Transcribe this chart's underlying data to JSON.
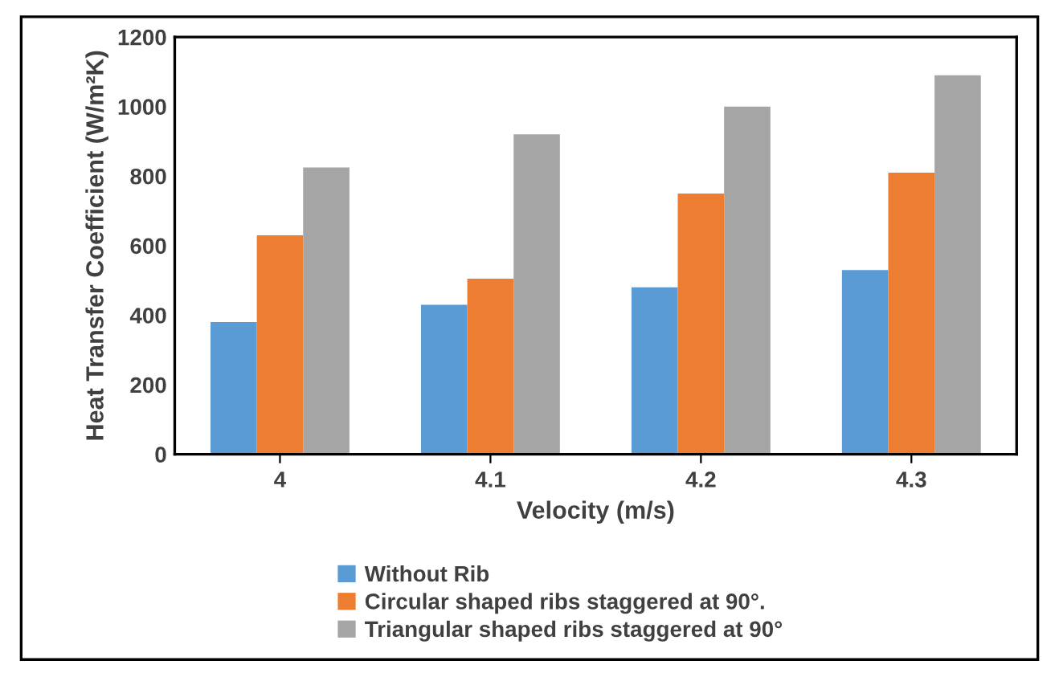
{
  "chart_data": {
    "type": "bar",
    "xlabel": "Velocity (m/s)",
    "ylabel": "Heat Transfer Coefficient (W/m²K)",
    "categories": [
      "4",
      "4.1",
      "4.2",
      "4.3"
    ],
    "series": [
      {
        "name": "Without Rib",
        "color": "#5b9bd5",
        "values": [
          380,
          430,
          480,
          530
        ]
      },
      {
        "name": "Circular shaped ribs staggered at 90°.",
        "color": "#ed7d31",
        "values": [
          630,
          505,
          750,
          810
        ]
      },
      {
        "name": "Triangular shaped ribs staggered at 90°",
        "color": "#a5a5a5",
        "values": [
          825,
          920,
          1000,
          1090
        ]
      }
    ],
    "ylim": [
      0,
      1200
    ],
    "yticks": [
      0,
      200,
      400,
      600,
      800,
      1000,
      1200
    ],
    "grid": false,
    "legend": "bottom"
  }
}
